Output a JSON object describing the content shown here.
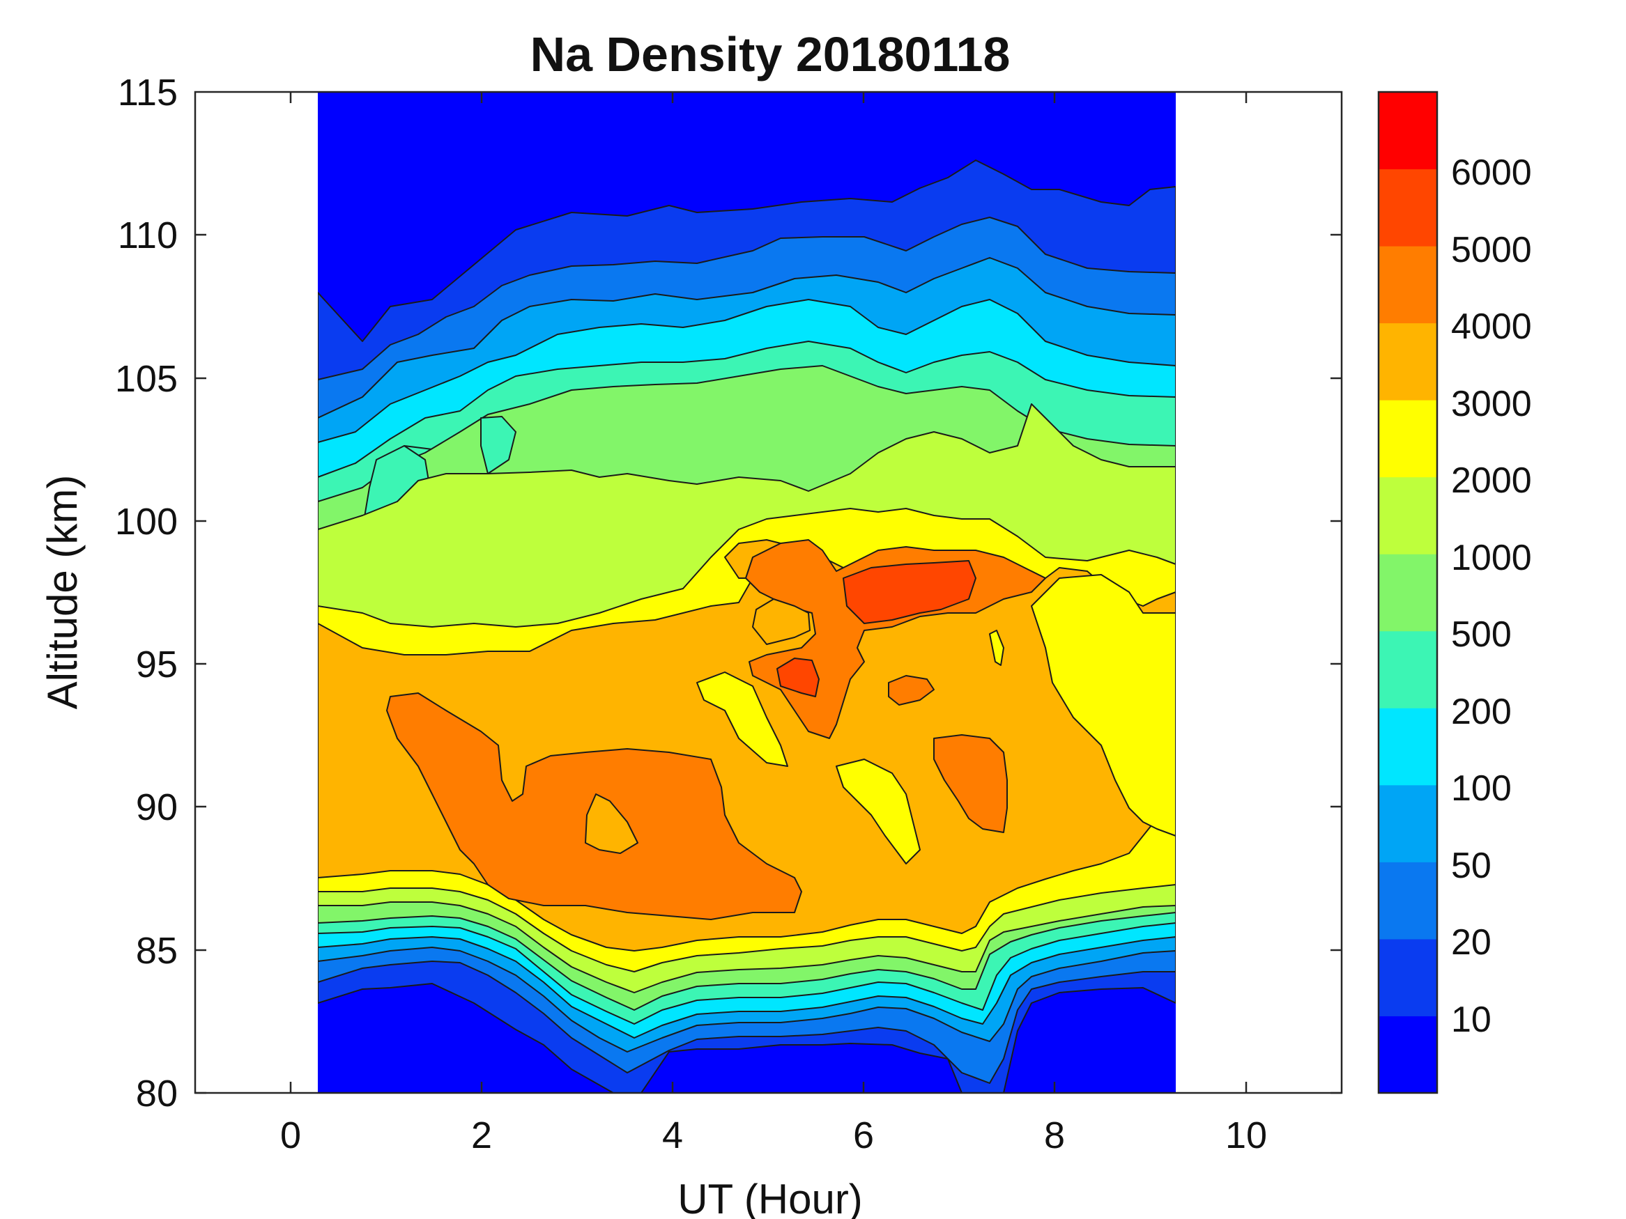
{
  "chart_data": {
    "type": "heatmap",
    "subtype": "filled-contour",
    "title": "Na Density 20180118",
    "xlabel": "UT (Hour)",
    "ylabel": "Altitude (km)",
    "xlim": [
      -1,
      11
    ],
    "ylim": [
      80,
      115
    ],
    "data_xrange": [
      0.3,
      9.2
    ],
    "xticks": [
      0,
      2,
      4,
      6,
      8,
      10
    ],
    "yticks": [
      80,
      85,
      90,
      95,
      100,
      105,
      110,
      115
    ],
    "contour_levels": [
      10,
      20,
      50,
      100,
      200,
      500,
      1000,
      2000,
      3000,
      4000,
      5000,
      6000
    ],
    "colorbar": {
      "tick_labels": [
        "10",
        "20",
        "50",
        "100",
        "200",
        "500",
        "1000",
        "2000",
        "3000",
        "4000",
        "5000",
        "6000"
      ],
      "band_colors": [
        "#0000ff",
        "#0a3cf0",
        "#0a78f0",
        "#00a5f5",
        "#00e6ff",
        "#3cf5b4",
        "#82f569",
        "#beff3c",
        "#ffff00",
        "#ffb400",
        "#ff7d00",
        "#ff4600",
        "#ff0000"
      ]
    },
    "features": {
      "layer_peak_altitude_km": 92,
      "max_density_region": {
        "ut_hour": 6.5,
        "altitude_km": 97.5,
        "value_range": "5000-6000"
      },
      "secondary_peaks": [
        {
          "ut_hour": 5.3,
          "altitude_km": 94.5,
          "value_range": "5000-6000"
        },
        {
          "ut_hour": 3.5,
          "altitude_km": 89,
          "value_range": "4000-5000"
        },
        {
          "ut_hour": 7.0,
          "altitude_km": 91,
          "value_range": "4000-5000"
        }
      ],
      "top_background": "below 10",
      "bottom_background": "below 10"
    }
  }
}
